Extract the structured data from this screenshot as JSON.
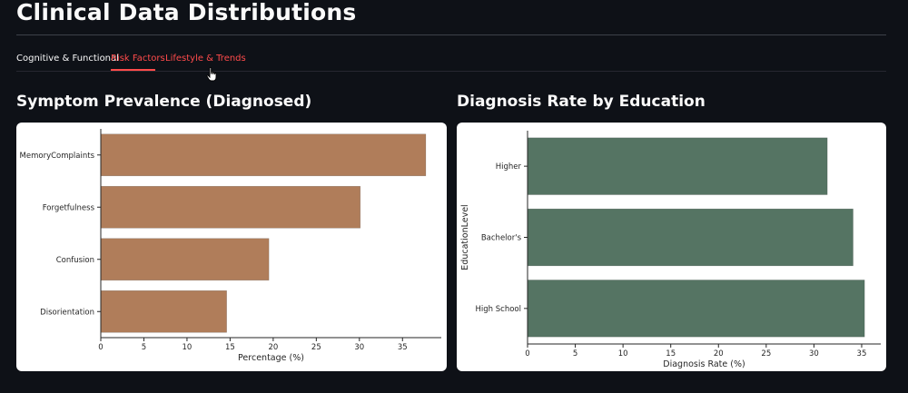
{
  "page": {
    "title": "Clinical Data Distributions"
  },
  "tabs": [
    {
      "label": "Cognitive & Functional",
      "state": "inactive"
    },
    {
      "label": "Risk Factors",
      "state": "active"
    },
    {
      "label": "Lifestyle & Trends",
      "state": "hover"
    }
  ],
  "colors": {
    "background": "#0e1117",
    "accent": "#ff4b4b",
    "symptom_bar": "#b07d5a",
    "education_bar": "#557463"
  },
  "sections": {
    "left_title": "Symptom Prevalence (Diagnosed)",
    "right_title": "Diagnosis Rate by Education"
  },
  "chart_data": [
    {
      "type": "bar",
      "orientation": "horizontal",
      "categories": [
        "MemoryComplaints",
        "Forgetfulness",
        "Confusion",
        "Disorientation"
      ],
      "values": [
        37.7,
        30.1,
        19.5,
        14.6
      ],
      "xlabel": "Percentage (%)",
      "ylabel": "",
      "xlim": [
        0,
        39.5
      ],
      "xticks": [
        0,
        5,
        10,
        15,
        20,
        25,
        30,
        35
      ],
      "grid": false,
      "color": "#b07d5a"
    },
    {
      "type": "bar",
      "orientation": "horizontal",
      "categories": [
        "Higher",
        "Bachelor's",
        "High School"
      ],
      "values": [
        31.4,
        34.1,
        35.3
      ],
      "xlabel": "Diagnosis Rate (%)",
      "ylabel": "EducationLevel",
      "xlim": [
        0,
        37.0
      ],
      "xticks": [
        0,
        5,
        10,
        15,
        20,
        25,
        30,
        35
      ],
      "grid": false,
      "color": "#557463"
    }
  ]
}
